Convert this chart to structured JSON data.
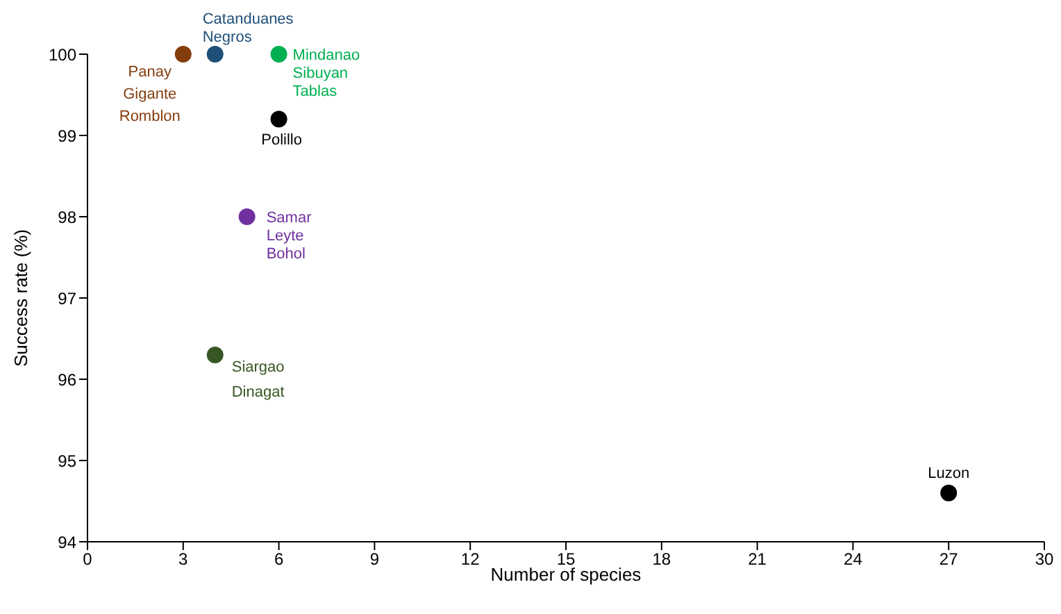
{
  "chart_data": {
    "type": "scatter",
    "xlabel": "Number of species",
    "ylabel": "Success rate (%)",
    "xlim": [
      0,
      30
    ],
    "xticks": [
      0,
      3,
      6,
      9,
      12,
      15,
      18,
      21,
      24,
      27,
      30
    ],
    "ylim": [
      94,
      100
    ],
    "yticks": [
      94,
      95,
      96,
      97,
      98,
      99,
      100
    ],
    "grid": false,
    "legend": false,
    "marker": "circle",
    "series": [
      {
        "name": "Panay\nGigante\nRomblon",
        "color": "#843c0c",
        "x": [
          3
        ],
        "values": [
          100
        ]
      },
      {
        "name": "Catanduanes\nNegros",
        "color": "#1f4e79",
        "x": [
          4
        ],
        "values": [
          100
        ]
      },
      {
        "name": "Mindanao\nSibuyan\nTablas",
        "color": "#00b050",
        "x": [
          6
        ],
        "values": [
          100
        ]
      },
      {
        "name": "Polillo",
        "color": "#000000",
        "x": [
          6
        ],
        "values": [
          99.2
        ]
      },
      {
        "name": "Samar\nLeyte\nBohol",
        "color": "#7030a0",
        "x": [
          5
        ],
        "values": [
          98
        ]
      },
      {
        "name": "Siargao\nDinagat",
        "color": "#375623",
        "x": [
          4
        ],
        "values": [
          96.3
        ]
      },
      {
        "name": "Luzon",
        "color": "#000000",
        "x": [
          27
        ],
        "values": [
          94.6
        ]
      }
    ]
  }
}
